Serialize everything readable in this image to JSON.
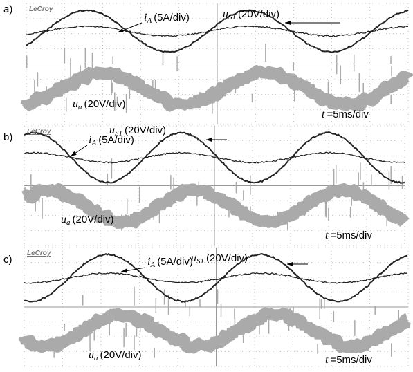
{
  "figure": {
    "panels": [
      {
        "label": "a)",
        "brand": "LeCroy",
        "current": {
          "symbol": "i",
          "subscript": "A",
          "scale": "(5A/div)"
        },
        "grid_voltage": {
          "symbol": "u",
          "subscript": "S1",
          "scale": "(20V/div)"
        },
        "output_voltage": {
          "symbol": "u",
          "subscript": "a",
          "scale": "(20V/div)"
        },
        "time": {
          "symbol": "t",
          "scale": "=5ms/div"
        }
      },
      {
        "label": "b)",
        "brand": "LeCroy",
        "current": {
          "symbol": "i",
          "subscript": "A",
          "scale": "(5A/div)"
        },
        "grid_voltage": {
          "symbol": "u",
          "subscript": "S1",
          "scale": "(20V/div)"
        },
        "output_voltage": {
          "symbol": "u",
          "subscript": "a",
          "scale": "(20V/div)"
        },
        "time": {
          "symbol": "t",
          "scale": "=5ms/div"
        }
      },
      {
        "label": "c)",
        "brand": "LeCroy",
        "current": {
          "symbol": "i",
          "subscript": "A",
          "scale": "(5A/div)"
        },
        "grid_voltage": {
          "symbol": "u",
          "subscript": "S1",
          "scale": "(20V/div)"
        },
        "output_voltage": {
          "symbol": "u",
          "subscript": "a",
          "scale": "(20V/div)"
        },
        "time": {
          "symbol": "t",
          "scale": "=5ms/div"
        }
      }
    ]
  }
}
